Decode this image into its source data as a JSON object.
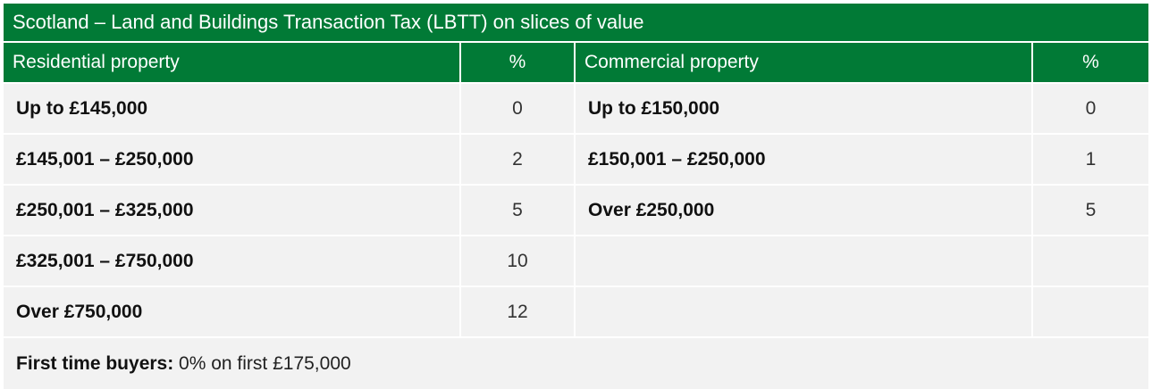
{
  "table": {
    "title": "Scotland – Land and Buildings Transaction Tax (LBTT) on slices of value",
    "residential_header": "Residential property",
    "residential_pct_header": "%",
    "commercial_header": "Commercial property",
    "commercial_pct_header": "%",
    "residential_rows": [
      {
        "band": "Up to £145,000",
        "rate": "0"
      },
      {
        "band": "£145,001 – £250,000",
        "rate": "2"
      },
      {
        "band": "£250,001 – £325,000",
        "rate": "5"
      },
      {
        "band": "£325,001 – £750,000",
        "rate": "10"
      },
      {
        "band": "Over £750,000",
        "rate": "12"
      }
    ],
    "commercial_rows": [
      {
        "band": "Up to £150,000",
        "rate": "0"
      },
      {
        "band": "£150,001 – £250,000",
        "rate": "1"
      },
      {
        "band": "Over £250,000",
        "rate": "5"
      },
      {
        "band": "",
        "rate": ""
      },
      {
        "band": "",
        "rate": ""
      }
    ],
    "footer_label": "First time buyers:",
    "footer_text": " 0% on first £175,000"
  },
  "colors": {
    "header_green": "#017a36",
    "row_background": "#f2f2f2"
  }
}
